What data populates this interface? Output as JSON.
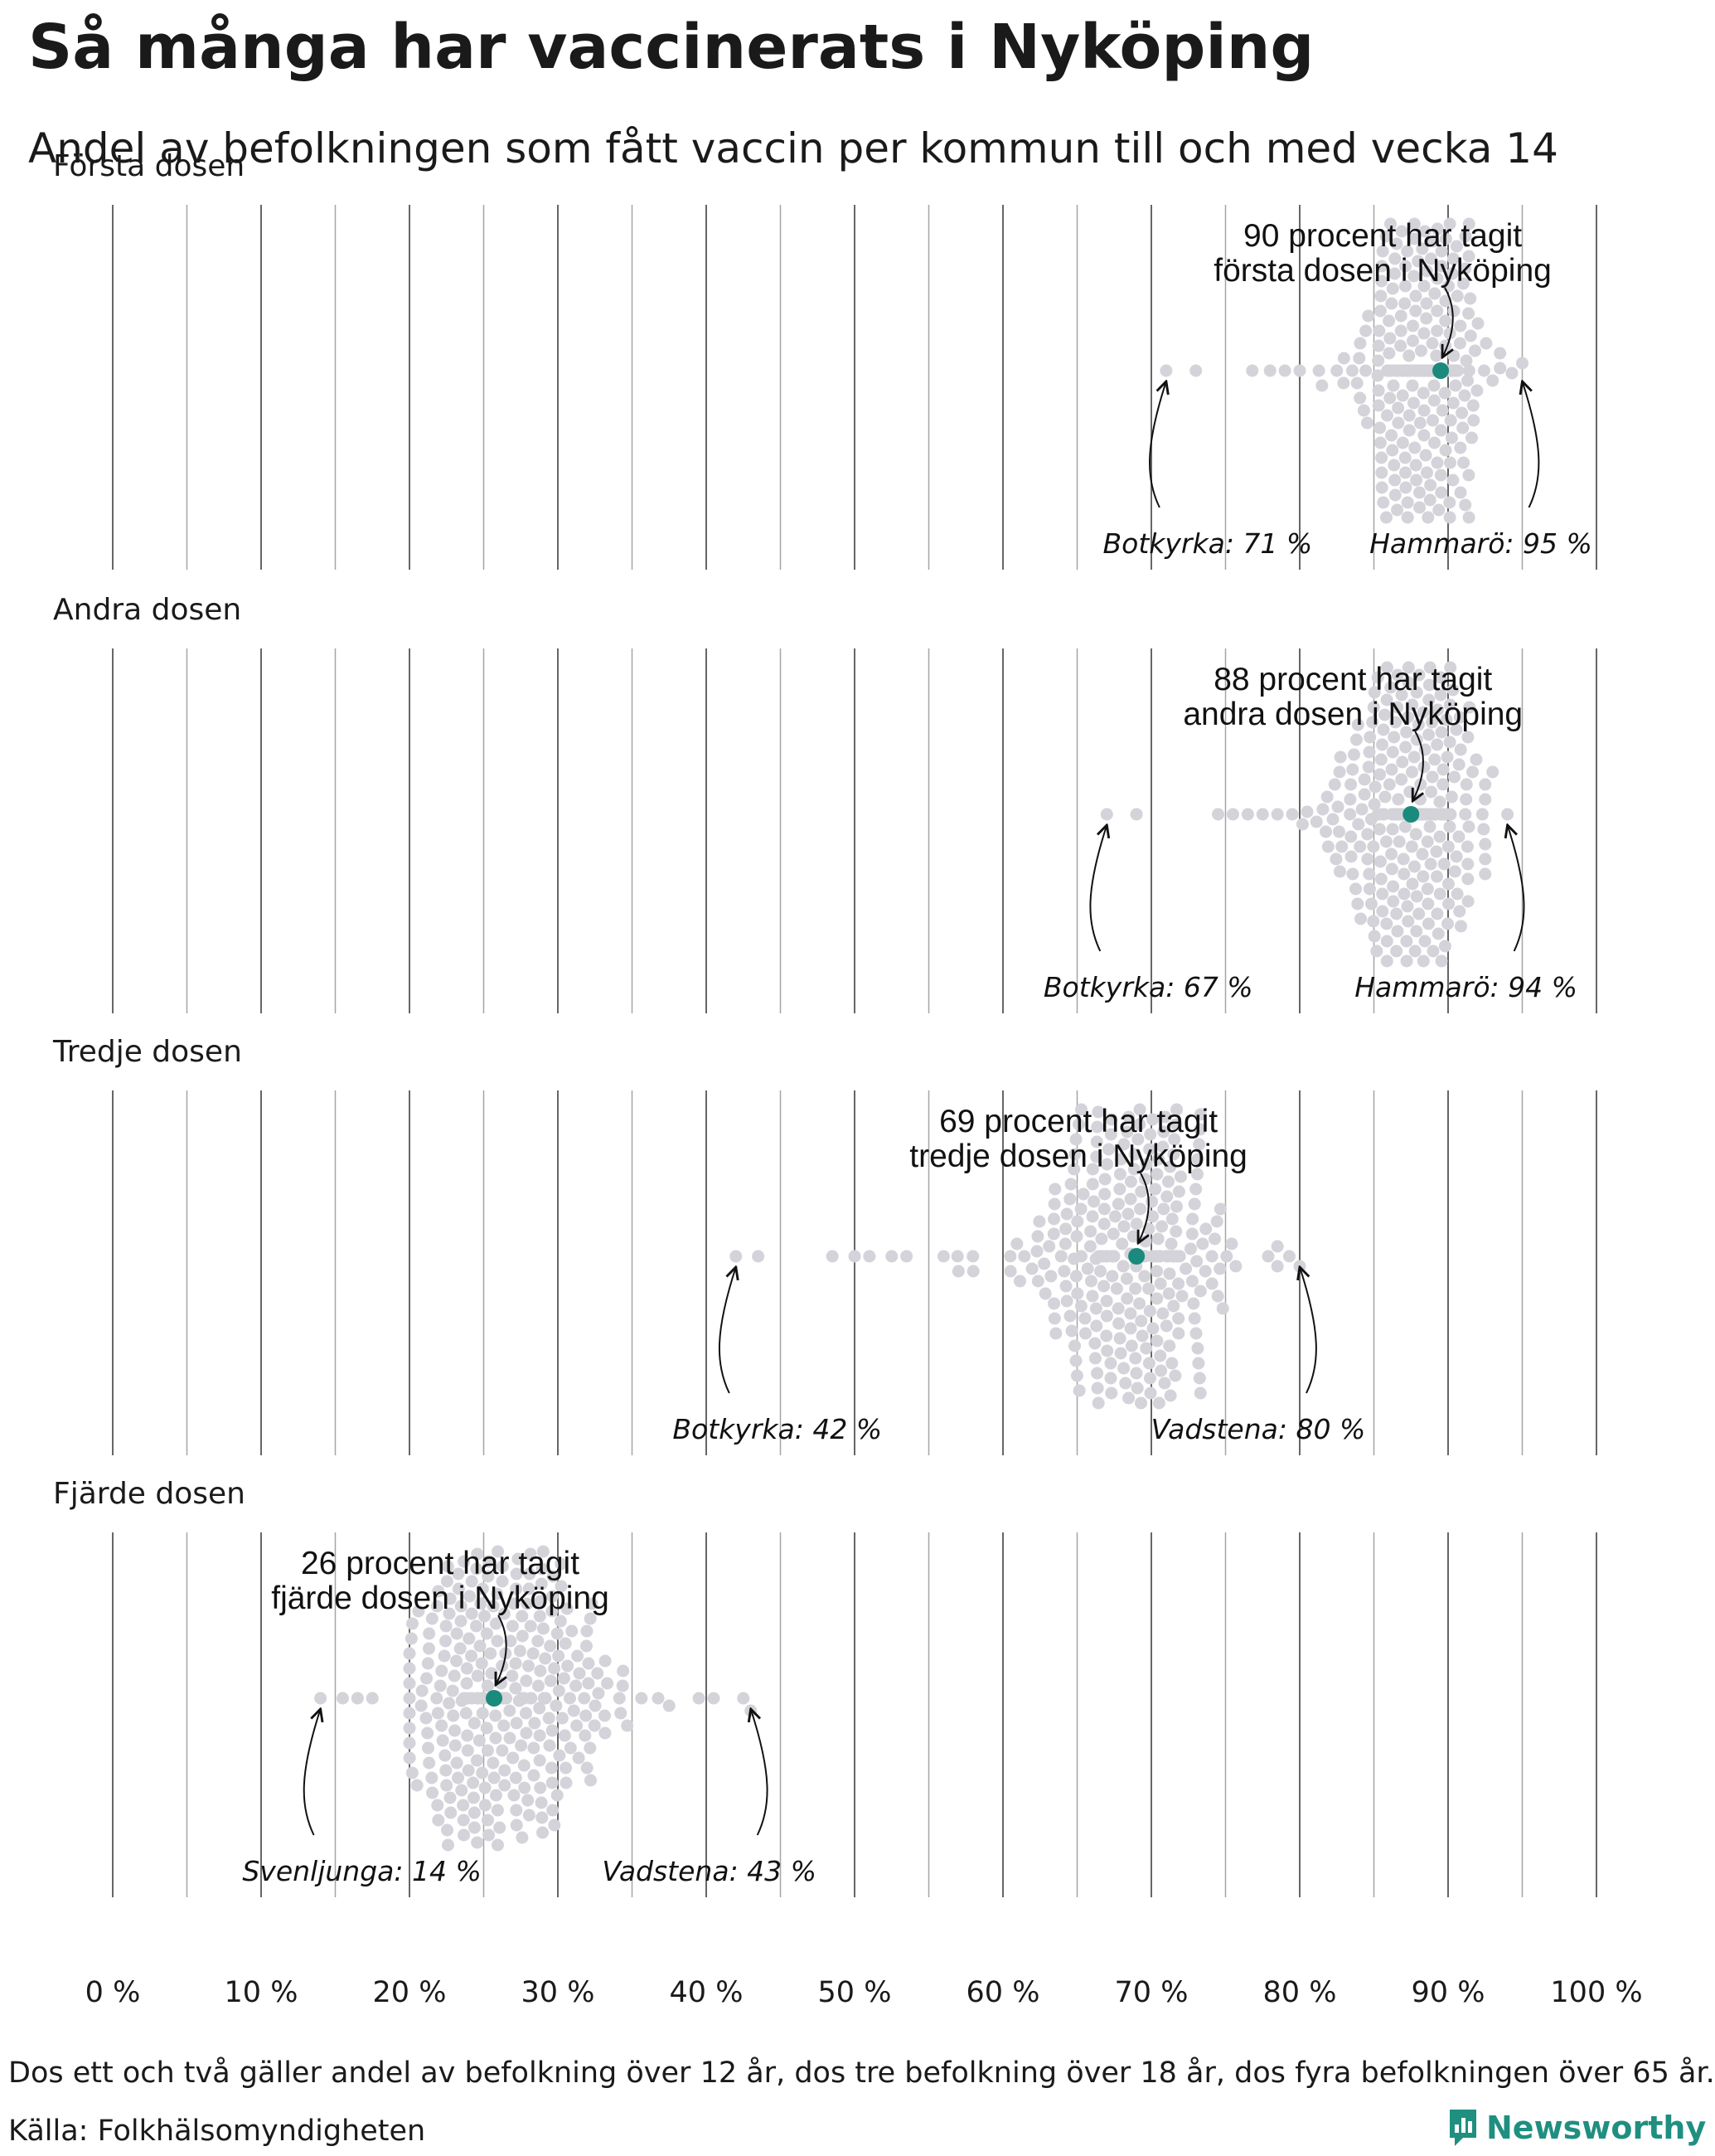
{
  "title": "Så många har vaccinerats i Nyköping",
  "subtitle": "Andel av befolkningen som fått vaccin per kommun till och med vecka 14",
  "footnote": "Dos ett och två gäller andel av befolkning över 12 år, dos tre befolkning över 18 år, dos fyra befolkningen över 65 år.",
  "source": "Källa: Folkhälsomyndigheten",
  "brand": "Newsworthy",
  "colors": {
    "highlight": "#1a8a7d",
    "dots": "#d3d3d9",
    "grid": "#666666",
    "brand": "#1f8f80"
  },
  "chart_data": {
    "type": "scatter",
    "subtype": "beeswarm",
    "x_ticks": [
      "0 %",
      "10 %",
      "20 %",
      "30 %",
      "40 %",
      "50 %",
      "60 %",
      "70 %",
      "80 %",
      "90 %",
      "100 %"
    ],
    "xlim": [
      0,
      100
    ],
    "grid": true,
    "panels": [
      {
        "label": "Första dosen",
        "highlight_value": 89.5,
        "note_lines": [
          "90 procent har tagit",
          "första dosen i Nyköping"
        ],
        "min": {
          "label": "Botkyrka: 71 %",
          "value": 71
        },
        "max": {
          "label": "Hammarö: 95 %",
          "value": 95
        },
        "distribution": {
          "center": 89,
          "spread_left": 4.5,
          "spread_right": 3,
          "tail_points": [
            71,
            73,
            76.8,
            78,
            79,
            80,
            81.5,
            82.5,
            93,
            94.3,
            95
          ],
          "count": 290
        }
      },
      {
        "label": "Andra dosen",
        "highlight_value": 87.5,
        "note_lines": [
          "88 procent har tagit",
          "andra dosen i Nyköping"
        ],
        "min": {
          "label": "Botkyrka: 67 %",
          "value": 67
        },
        "max": {
          "label": "Hammarö: 94 %",
          "value": 94
        },
        "distribution": {
          "center": 87.5,
          "spread_left": 5,
          "spread_right": 4,
          "tail_points": [
            67,
            69,
            74.5,
            75.5,
            76.5,
            77.5,
            78.5,
            79.5,
            80.5,
            93,
            94
          ],
          "count": 290
        }
      },
      {
        "label": "Tredje dosen",
        "highlight_value": 69,
        "note_lines": [
          "69 procent har tagit",
          "tredje dosen i Nyköping"
        ],
        "min": {
          "label": "Botkyrka: 42 %",
          "value": 42
        },
        "max": {
          "label": "Vadstena: 80 %",
          "value": 80
        },
        "distribution": {
          "center": 69,
          "spread_left": 7,
          "spread_right": 6,
          "tail_points": [
            42,
            43.5,
            48.5,
            50,
            51,
            52.5,
            53.5,
            56,
            57,
            58,
            78.5,
            79.3,
            80
          ],
          "count": 290
        }
      },
      {
        "label": "Fjärde dosen",
        "highlight_value": 25.7,
        "note_lines": [
          "26 procent har tagit",
          "fjärde dosen i Nyköping"
        ],
        "min": {
          "label": "Svenljunga: 14 %",
          "value": 14
        },
        "max": {
          "label": "Vadstena: 43 %",
          "value": 43
        },
        "distribution": {
          "center": 26,
          "spread_left": 6,
          "spread_right": 7,
          "tail_points": [
            14,
            15.5,
            16.5,
            17.5,
            37.5,
            39.5,
            40.5,
            42.5,
            43
          ],
          "count": 290
        }
      }
    ]
  }
}
